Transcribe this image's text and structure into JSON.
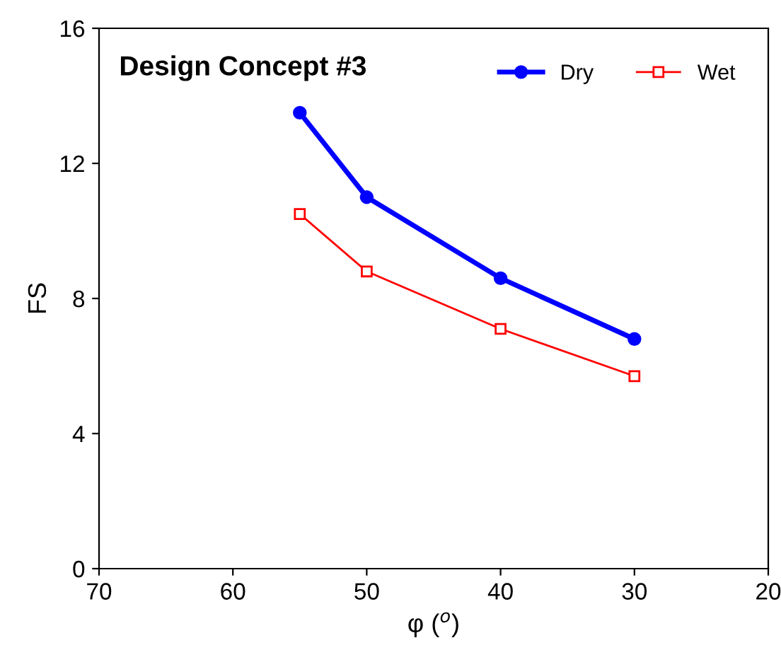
{
  "chart_data": {
    "type": "line",
    "title": "Design Concept #3",
    "xlabel": "φ ($^{o}$)",
    "ylabel": "FS",
    "x": [
      55,
      50,
      40,
      30
    ],
    "series": [
      {
        "name": "Dry",
        "color": "#0000ff",
        "values": [
          13.5,
          11.0,
          8.6,
          6.8
        ],
        "marker": "circle"
      },
      {
        "name": "Wet",
        "color": "#ff0000",
        "values": [
          10.5,
          8.8,
          7.1,
          5.7
        ],
        "marker": "square"
      }
    ],
    "xlim": [
      70,
      20
    ],
    "xticks": [
      70,
      60,
      50,
      40,
      30,
      20
    ],
    "ylim": [
      0,
      16
    ],
    "yticks": [
      0,
      4,
      8,
      12,
      16
    ],
    "grid": false,
    "legend": "top right",
    "line_style": "solid"
  }
}
